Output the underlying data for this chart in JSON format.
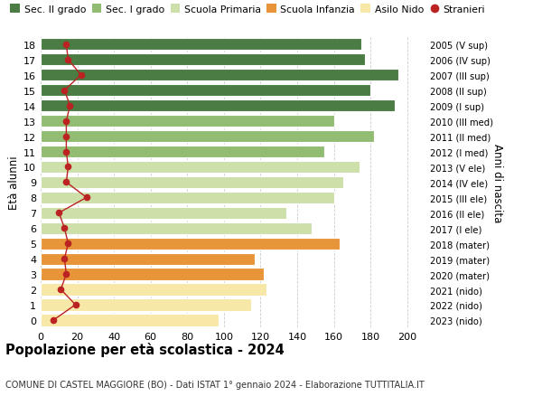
{
  "ages": [
    0,
    1,
    2,
    3,
    4,
    5,
    6,
    7,
    8,
    9,
    10,
    11,
    12,
    13,
    14,
    15,
    16,
    17,
    18
  ],
  "right_labels": [
    "2023 (nido)",
    "2022 (nido)",
    "2021 (nido)",
    "2020 (mater)",
    "2019 (mater)",
    "2018 (mater)",
    "2017 (I ele)",
    "2016 (II ele)",
    "2015 (III ele)",
    "2014 (IV ele)",
    "2013 (V ele)",
    "2012 (I med)",
    "2011 (II med)",
    "2010 (III med)",
    "2009 (I sup)",
    "2008 (II sup)",
    "2007 (III sup)",
    "2006 (IV sup)",
    "2005 (V sup)"
  ],
  "bar_values": [
    97,
    115,
    123,
    122,
    117,
    163,
    148,
    134,
    160,
    165,
    174,
    155,
    182,
    160,
    193,
    180,
    195,
    177,
    175
  ],
  "bar_colors": [
    "#f7e8a8",
    "#f7e8a8",
    "#f7e8a8",
    "#e8953a",
    "#e8953a",
    "#e8953a",
    "#cde0aa",
    "#cde0aa",
    "#cde0aa",
    "#cde0aa",
    "#cde0aa",
    "#93bc73",
    "#93bc73",
    "#93bc73",
    "#4a7c43",
    "#4a7c43",
    "#4a7c43",
    "#4a7c43",
    "#4a7c43"
  ],
  "stranieri_values": [
    7,
    19,
    11,
    14,
    13,
    15,
    13,
    10,
    25,
    14,
    15,
    14,
    14,
    14,
    16,
    13,
    22,
    15,
    14
  ],
  "stranieri_color": "#bb2222",
  "ylabel": "Età alunni",
  "right_ylabel": "Anni di nascita",
  "xlim": [
    0,
    210
  ],
  "xticks": [
    0,
    20,
    40,
    60,
    80,
    100,
    120,
    140,
    160,
    180,
    200
  ],
  "title": "Popolazione per età scolastica - 2024",
  "subtitle": "COMUNE DI CASTEL MAGGIORE (BO) - Dati ISTAT 1° gennaio 2024 - Elaborazione TUTTITALIA.IT",
  "legend_items": [
    {
      "label": "Sec. II grado",
      "color": "#4a7c43"
    },
    {
      "label": "Sec. I grado",
      "color": "#93bc73"
    },
    {
      "label": "Scuola Primaria",
      "color": "#cde0aa"
    },
    {
      "label": "Scuola Infanzia",
      "color": "#e8953a"
    },
    {
      "label": "Asilo Nido",
      "color": "#f7e8a8"
    },
    {
      "label": "Stranieri",
      "color": "#bb2222"
    }
  ],
  "bg_color": "#ffffff",
  "grid_color": "#cccccc",
  "bar_height": 0.78
}
